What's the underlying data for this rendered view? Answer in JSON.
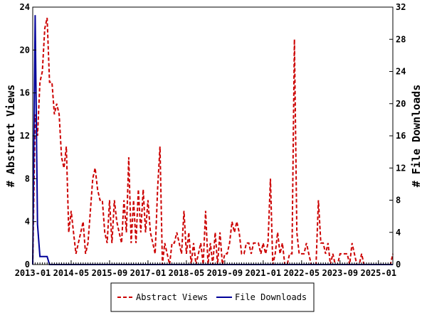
{
  "chart_data": {
    "type": "line",
    "x_start": "2013-01",
    "x_end": "2025-07",
    "x_ticks": [
      "2013-01",
      "2014-05",
      "2015-09",
      "2017-01",
      "2018-05",
      "2019-09",
      "2021-01",
      "2022-05",
      "2023-09",
      "2025-01"
    ],
    "y_left": {
      "label": "# Abstract Views",
      "lim": [
        0,
        24
      ],
      "ticks": [
        0,
        4,
        8,
        12,
        16,
        20,
        24
      ]
    },
    "y_right": {
      "label": "# File Downloads",
      "lim": [
        0,
        32
      ],
      "ticks": [
        0,
        4,
        8,
        12,
        16,
        20,
        24,
        28,
        32
      ]
    },
    "grid": false,
    "legend_position": "bottom",
    "series": [
      {
        "name": "Abstract Views",
        "axis": "left",
        "color": "#cc0000",
        "style": "dashed",
        "points": [
          [
            "2013-01",
            0
          ],
          [
            "2013-02",
            14
          ],
          [
            "2013-03",
            12
          ],
          [
            "2013-04",
            17
          ],
          [
            "2013-05",
            18
          ],
          [
            "2013-06",
            22
          ],
          [
            "2013-07",
            23
          ],
          [
            "2013-08",
            17
          ],
          [
            "2013-09",
            17
          ],
          [
            "2013-10",
            14
          ],
          [
            "2013-11",
            15
          ],
          [
            "2013-12",
            14
          ],
          [
            "2014-01",
            10
          ],
          [
            "2014-02",
            9
          ],
          [
            "2014-03",
            11
          ],
          [
            "2014-04",
            3
          ],
          [
            "2014-05",
            5
          ],
          [
            "2014-06",
            3
          ],
          [
            "2014-07",
            1
          ],
          [
            "2014-08",
            2
          ],
          [
            "2014-09",
            3
          ],
          [
            "2014-10",
            4
          ],
          [
            "2014-11",
            1
          ],
          [
            "2014-12",
            2
          ],
          [
            "2015-01",
            5
          ],
          [
            "2015-02",
            8
          ],
          [
            "2015-03",
            9
          ],
          [
            "2015-04",
            7
          ],
          [
            "2015-05",
            6
          ],
          [
            "2015-06",
            6
          ],
          [
            "2015-07",
            3
          ],
          [
            "2015-08",
            2
          ],
          [
            "2015-09",
            6
          ],
          [
            "2015-10",
            2
          ],
          [
            "2015-11",
            6
          ],
          [
            "2015-12",
            4
          ],
          [
            "2016-01",
            3
          ],
          [
            "2016-02",
            2
          ],
          [
            "2016-03",
            6
          ],
          [
            "2016-04",
            3
          ],
          [
            "2016-05",
            10
          ],
          [
            "2016-06",
            2
          ],
          [
            "2016-07",
            6
          ],
          [
            "2016-08",
            2
          ],
          [
            "2016-09",
            7
          ],
          [
            "2016-10",
            3
          ],
          [
            "2016-11",
            7
          ],
          [
            "2016-12",
            3
          ],
          [
            "2017-01",
            6
          ],
          [
            "2017-02",
            3
          ],
          [
            "2017-03",
            2
          ],
          [
            "2017-04",
            1
          ],
          [
            "2017-05",
            7
          ],
          [
            "2017-06",
            11
          ],
          [
            "2017-07",
            0
          ],
          [
            "2017-08",
            2
          ],
          [
            "2017-09",
            1
          ],
          [
            "2017-10",
            0
          ],
          [
            "2017-11",
            2
          ],
          [
            "2017-12",
            2
          ],
          [
            "2018-01",
            3
          ],
          [
            "2018-02",
            2
          ],
          [
            "2018-03",
            1
          ],
          [
            "2018-04",
            5
          ],
          [
            "2018-05",
            1
          ],
          [
            "2018-06",
            3
          ],
          [
            "2018-07",
            0
          ],
          [
            "2018-08",
            2
          ],
          [
            "2018-09",
            0
          ],
          [
            "2018-10",
            1
          ],
          [
            "2018-11",
            2
          ],
          [
            "2018-12",
            0
          ],
          [
            "2019-01",
            5
          ],
          [
            "2019-02",
            0
          ],
          [
            "2019-03",
            2
          ],
          [
            "2019-04",
            0
          ],
          [
            "2019-05",
            3
          ],
          [
            "2019-06",
            0
          ],
          [
            "2019-07",
            3
          ],
          [
            "2019-08",
            0
          ],
          [
            "2019-09",
            1
          ],
          [
            "2019-10",
            1
          ],
          [
            "2019-11",
            2
          ],
          [
            "2019-12",
            4
          ],
          [
            "2020-01",
            3
          ],
          [
            "2020-02",
            4
          ],
          [
            "2020-03",
            3
          ],
          [
            "2020-04",
            1
          ],
          [
            "2020-05",
            1
          ],
          [
            "2020-06",
            2
          ],
          [
            "2020-07",
            2
          ],
          [
            "2020-08",
            1
          ],
          [
            "2020-09",
            2
          ],
          [
            "2020-10",
            2
          ],
          [
            "2020-11",
            2
          ],
          [
            "2020-12",
            1
          ],
          [
            "2021-01",
            2
          ],
          [
            "2021-02",
            1
          ],
          [
            "2021-03",
            2
          ],
          [
            "2021-04",
            8
          ],
          [
            "2021-05",
            0
          ],
          [
            "2021-06",
            1
          ],
          [
            "2021-07",
            3
          ],
          [
            "2021-08",
            1
          ],
          [
            "2021-09",
            2
          ],
          [
            "2021-10",
            0
          ],
          [
            "2021-11",
            0
          ],
          [
            "2021-12",
            1
          ],
          [
            "2022-01",
            1
          ],
          [
            "2022-02",
            21
          ],
          [
            "2022-03",
            3
          ],
          [
            "2022-04",
            1
          ],
          [
            "2022-05",
            1
          ],
          [
            "2022-06",
            1
          ],
          [
            "2022-07",
            2
          ],
          [
            "2022-08",
            1
          ],
          [
            "2022-09",
            0
          ],
          [
            "2022-10",
            0
          ],
          [
            "2022-11",
            0
          ],
          [
            "2022-12",
            6
          ],
          [
            "2023-01",
            2
          ],
          [
            "2023-02",
            2
          ],
          [
            "2023-03",
            1
          ],
          [
            "2023-04",
            2
          ],
          [
            "2023-05",
            0
          ],
          [
            "2023-06",
            1
          ],
          [
            "2023-07",
            0
          ],
          [
            "2023-08",
            0
          ],
          [
            "2023-09",
            1
          ],
          [
            "2023-10",
            1
          ],
          [
            "2023-11",
            1
          ],
          [
            "2023-12",
            1
          ],
          [
            "2024-01",
            0
          ],
          [
            "2024-02",
            2
          ],
          [
            "2024-03",
            1
          ],
          [
            "2024-04",
            0
          ],
          [
            "2024-05",
            0
          ],
          [
            "2024-06",
            1
          ],
          [
            "2024-07",
            0
          ],
          [
            "2024-08",
            0
          ],
          [
            "2024-09",
            0
          ],
          [
            "2024-10",
            0
          ],
          [
            "2024-11",
            0
          ],
          [
            "2024-12",
            0
          ],
          [
            "2025-01",
            0
          ],
          [
            "2025-02",
            0
          ],
          [
            "2025-03",
            0
          ],
          [
            "2025-04",
            0
          ],
          [
            "2025-05",
            0
          ],
          [
            "2025-06",
            0
          ],
          [
            "2025-07",
            1
          ]
        ]
      },
      {
        "name": "File Downloads",
        "axis": "right",
        "color": "#000099",
        "style": "solid",
        "points": [
          [
            "2013-01",
            0
          ],
          [
            "2013-02",
            31
          ],
          [
            "2013-03",
            5
          ],
          [
            "2013-04",
            1
          ],
          [
            "2013-05",
            1
          ],
          [
            "2013-06",
            1
          ],
          [
            "2013-07",
            1
          ],
          [
            "2013-08",
            0
          ],
          [
            "2013-09",
            0
          ],
          [
            "2013-10",
            0
          ],
          [
            "2013-11",
            0
          ],
          [
            "2013-12",
            0
          ],
          [
            "2014-06",
            0
          ],
          [
            "2015-06",
            0
          ],
          [
            "2016-06",
            0
          ],
          [
            "2017-06",
            0
          ],
          [
            "2018-06",
            0
          ],
          [
            "2019-06",
            0
          ],
          [
            "2020-06",
            0
          ],
          [
            "2021-06",
            0
          ],
          [
            "2022-06",
            0
          ],
          [
            "2023-06",
            0
          ],
          [
            "2024-06",
            0
          ],
          [
            "2025-07",
            0
          ]
        ]
      }
    ]
  }
}
